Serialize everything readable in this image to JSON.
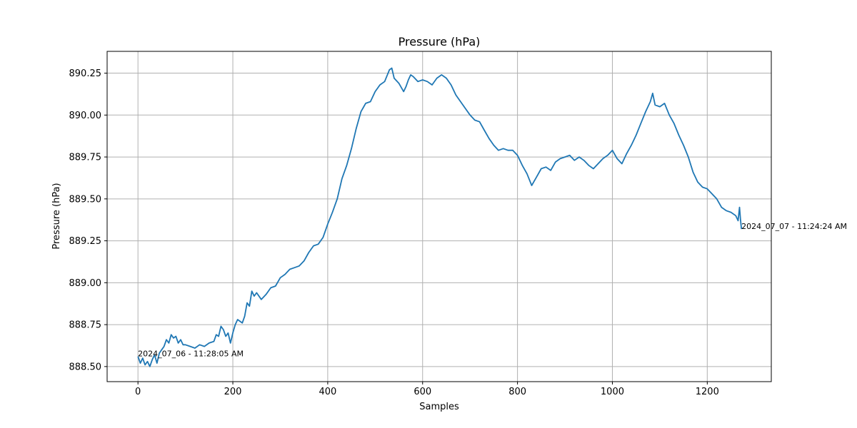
{
  "chart_data": {
    "type": "line",
    "title": "Pressure (hPa)",
    "xlabel": "Samples",
    "ylabel": "Pressure (hPa)",
    "xlim": [
      -65,
      1335
    ],
    "ylim": [
      888.41,
      890.38
    ],
    "xticks": [
      0,
      200,
      400,
      600,
      800,
      1000,
      1200
    ],
    "yticks": [
      888.5,
      888.75,
      889.0,
      889.25,
      889.5,
      889.75,
      890.0,
      890.25
    ],
    "xtick_labels": [
      "0",
      "200",
      "400",
      "600",
      "800",
      "1000",
      "1200"
    ],
    "ytick_labels": [
      "888.50",
      "888.75",
      "889.00",
      "889.25",
      "889.50",
      "889.75",
      "890.00",
      "890.25"
    ],
    "grid": true,
    "line_color": "#1f77b4",
    "annotations": [
      {
        "text": "2024_07_06 - 11:28:05 AM",
        "x": 0,
        "y": 888.56
      },
      {
        "text": "2024_07_07 - 11:24:24 AM",
        "x": 1272,
        "y": 889.32
      }
    ],
    "series": [
      {
        "x": [
          0,
          5,
          10,
          15,
          20,
          25,
          30,
          35,
          40,
          45,
          50,
          55,
          60,
          65,
          70,
          75,
          80,
          85,
          90,
          95,
          100,
          110,
          120,
          130,
          140,
          150,
          160,
          165,
          170,
          175,
          180,
          185,
          190,
          195,
          200,
          205,
          210,
          215,
          220,
          225,
          230,
          235,
          240,
          245,
          250,
          260,
          270,
          280,
          290,
          300,
          310,
          320,
          330,
          340,
          350,
          360,
          370,
          380,
          390,
          400,
          410,
          420,
          430,
          440,
          450,
          460,
          470,
          480,
          490,
          500,
          510,
          520,
          530,
          535,
          540,
          550,
          560,
          565,
          570,
          575,
          580,
          590,
          600,
          610,
          620,
          630,
          640,
          650,
          660,
          670,
          680,
          690,
          700,
          710,
          720,
          730,
          740,
          750,
          760,
          770,
          780,
          790,
          800,
          810,
          820,
          830,
          840,
          850,
          860,
          870,
          880,
          890,
          900,
          910,
          920,
          930,
          940,
          950,
          960,
          970,
          980,
          990,
          1000,
          1010,
          1020,
          1030,
          1040,
          1050,
          1060,
          1070,
          1080,
          1085,
          1090,
          1100,
          1110,
          1120,
          1130,
          1140,
          1150,
          1160,
          1170,
          1180,
          1190,
          1200,
          1210,
          1220,
          1230,
          1240,
          1250,
          1260,
          1265,
          1268,
          1270,
          1272
        ],
        "y": [
          888.56,
          888.52,
          888.55,
          888.51,
          888.53,
          888.5,
          888.54,
          888.57,
          888.52,
          888.58,
          888.6,
          888.62,
          888.66,
          888.64,
          888.69,
          888.67,
          888.68,
          888.64,
          888.66,
          888.63,
          888.63,
          888.62,
          888.61,
          888.63,
          888.62,
          888.64,
          888.65,
          888.69,
          888.68,
          888.74,
          888.72,
          888.68,
          888.7,
          888.64,
          888.7,
          888.75,
          888.78,
          888.77,
          888.76,
          888.8,
          888.88,
          888.86,
          888.95,
          888.92,
          888.94,
          888.9,
          888.93,
          888.97,
          888.98,
          889.03,
          889.05,
          889.08,
          889.09,
          889.1,
          889.13,
          889.18,
          889.22,
          889.23,
          889.27,
          889.35,
          889.42,
          889.5,
          889.62,
          889.7,
          889.8,
          889.92,
          890.02,
          890.07,
          890.08,
          890.14,
          890.18,
          890.2,
          890.27,
          890.28,
          890.22,
          890.19,
          890.14,
          890.17,
          890.21,
          890.24,
          890.23,
          890.2,
          890.21,
          890.2,
          890.18,
          890.22,
          890.24,
          890.22,
          890.18,
          890.12,
          890.08,
          890.04,
          890.0,
          889.97,
          889.96,
          889.91,
          889.86,
          889.82,
          889.79,
          889.8,
          889.79,
          889.79,
          889.76,
          889.7,
          889.65,
          889.58,
          889.63,
          889.68,
          889.69,
          889.67,
          889.72,
          889.74,
          889.75,
          889.76,
          889.73,
          889.75,
          889.73,
          889.7,
          889.68,
          889.71,
          889.74,
          889.76,
          889.79,
          889.74,
          889.71,
          889.77,
          889.82,
          889.88,
          889.95,
          890.02,
          890.08,
          890.13,
          890.06,
          890.05,
          890.07,
          890.0,
          889.95,
          889.88,
          889.82,
          889.75,
          889.66,
          889.6,
          889.57,
          889.56,
          889.53,
          889.5,
          889.45,
          889.43,
          889.42,
          889.4,
          889.37,
          889.45,
          889.38,
          889.32
        ]
      }
    ]
  }
}
